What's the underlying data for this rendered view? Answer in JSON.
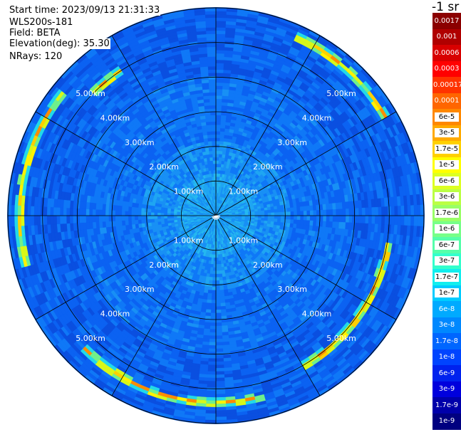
{
  "header": {
    "start_time": "Start time: 2023/09/13 21:31:33",
    "instrument": "WLS200s-181",
    "field": "Field: BETA",
    "elevation": "Elevation(deg): 35.30",
    "nrays": "NRays: 120"
  },
  "colorbar": {
    "unit_label": "-1 sr",
    "labels": [
      "0.0017",
      "0.001",
      "0.0006",
      "0.0003",
      "0.00017",
      "0.0001",
      "6e-5",
      "3e-5",
      "1.7e-5",
      "1e-5",
      "6e-6",
      "3e-6",
      "1.7e-6",
      "1e-6",
      "6e-7",
      "3e-7",
      "1.7e-7",
      "1e-7",
      "6e-8",
      "3e-8",
      "1.7e-8",
      "1e-8",
      "6e-9",
      "3e-9",
      "1.7e-9",
      "1e-9"
    ],
    "colors": [
      "#8b0000",
      "#b00000",
      "#d80000",
      "#ff0000",
      "#ff3300",
      "#ff6600",
      "#ff8800",
      "#ffaa00",
      "#ffd000",
      "#ffff00",
      "#ddff22",
      "#bbff44",
      "#99ff66",
      "#77ff88",
      "#55ffaa",
      "#33ffcc",
      "#11eeee",
      "#00ccff",
      "#00aaff",
      "#0088ff",
      "#0066ff",
      "#0044ff",
      "#0022ee",
      "#0000dd",
      "#0000aa",
      "#000080"
    ]
  },
  "chart_data": {
    "type": "heatmap",
    "projection": "polar",
    "field": "BETA",
    "elevation_deg": 35.3,
    "n_rays": 120,
    "range_rings": [
      {
        "range_km": 1,
        "label": "1.00km"
      },
      {
        "range_km": 2,
        "label": "2.00km"
      },
      {
        "range_km": 3,
        "label": "3.00km"
      },
      {
        "range_km": 4,
        "label": "4.00km"
      },
      {
        "range_km": 5,
        "label": "5.00km"
      }
    ],
    "spokes_deg": [
      0,
      30,
      60,
      90,
      120,
      150,
      180,
      210,
      240,
      270,
      300,
      330
    ],
    "max_range_km": 6.0,
    "typical_value_inner": "6e-8",
    "typical_value_outer": "1e-8",
    "high_arcs": [
      {
        "az_from_deg": 25,
        "az_to_deg": 60,
        "range_km": 5.65,
        "peak": "3e-5"
      },
      {
        "az_from_deg": 100,
        "az_to_deg": 150,
        "range_km": 5.05,
        "peak": "1e-5"
      },
      {
        "az_from_deg": 165,
        "az_to_deg": 225,
        "range_km": 5.4,
        "peak": "6e-5"
      },
      {
        "az_from_deg": 255,
        "az_to_deg": 310,
        "range_km": 5.65,
        "peak": "1e-5"
      },
      {
        "az_from_deg": 315,
        "az_to_deg": 328,
        "range_km": 5.0,
        "peak": "6e-6"
      }
    ],
    "colorscale": "log, 1e-9 to 0.0017 sr-1"
  }
}
